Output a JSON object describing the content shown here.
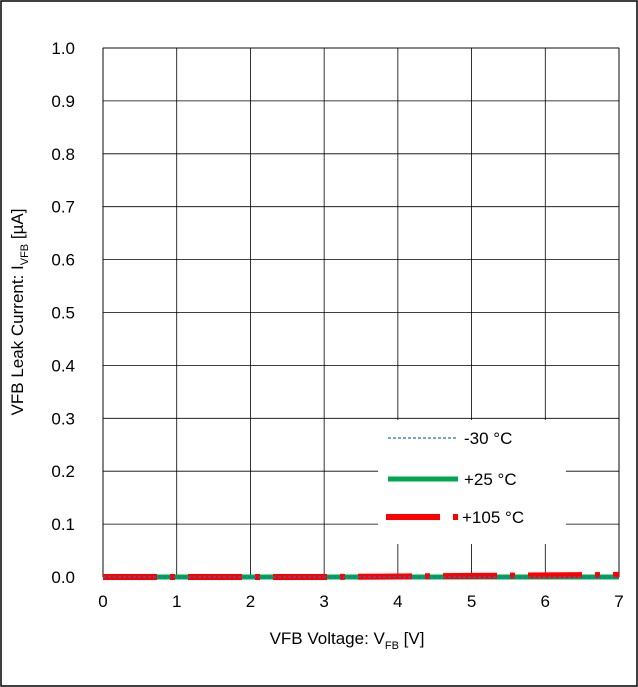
{
  "chart_data": {
    "type": "line",
    "title": "",
    "xlabel": {
      "main": "VFB Voltage: V",
      "sub": "FB",
      "unit": " [V]"
    },
    "ylabel": {
      "main": "VFB Leak Current: I",
      "sub": "VFB",
      "unit": " [µA]"
    },
    "xlim": [
      0,
      7
    ],
    "ylim": [
      0,
      1.0
    ],
    "xticks": [
      0,
      1,
      2,
      3,
      4,
      5,
      6,
      7
    ],
    "yticks": [
      0.0,
      0.1,
      0.2,
      0.3,
      0.4,
      0.5,
      0.6,
      0.7,
      0.8,
      0.9,
      1.0
    ],
    "xtick_labels": [
      "0",
      "1",
      "2",
      "3",
      "4",
      "5",
      "6",
      "7"
    ],
    "ytick_labels": [
      "0.0",
      "0.1",
      "0.2",
      "0.3",
      "0.4",
      "0.5",
      "0.6",
      "0.7",
      "0.8",
      "0.9",
      "1.0"
    ],
    "grid": true,
    "legend_position": "lower-right",
    "series": [
      {
        "name": "-30 °C",
        "color": "#1f6fc0",
        "style": "dashed-thin",
        "x": [
          0,
          1,
          2,
          3,
          4,
          5,
          6,
          7
        ],
        "y": [
          0.0,
          0.0,
          0.0,
          0.0,
          0.0,
          0.0,
          0.0,
          0.0
        ]
      },
      {
        "name": "+25 °C",
        "color": "#00a650",
        "style": "solid-thick",
        "x": [
          0,
          1,
          2,
          3,
          4,
          5,
          6,
          7
        ],
        "y": [
          0.0,
          0.0,
          0.0,
          0.0,
          0.0,
          0.0,
          0.0,
          0.0
        ]
      },
      {
        "name": "+105 °C",
        "color": "#ff0000",
        "style": "dash-dot-thick",
        "x": [
          0,
          1,
          2,
          3,
          4,
          5,
          6,
          7
        ],
        "y": [
          0.0,
          0.0,
          0.0,
          0.0,
          0.001,
          0.002,
          0.003,
          0.004
        ]
      }
    ]
  }
}
